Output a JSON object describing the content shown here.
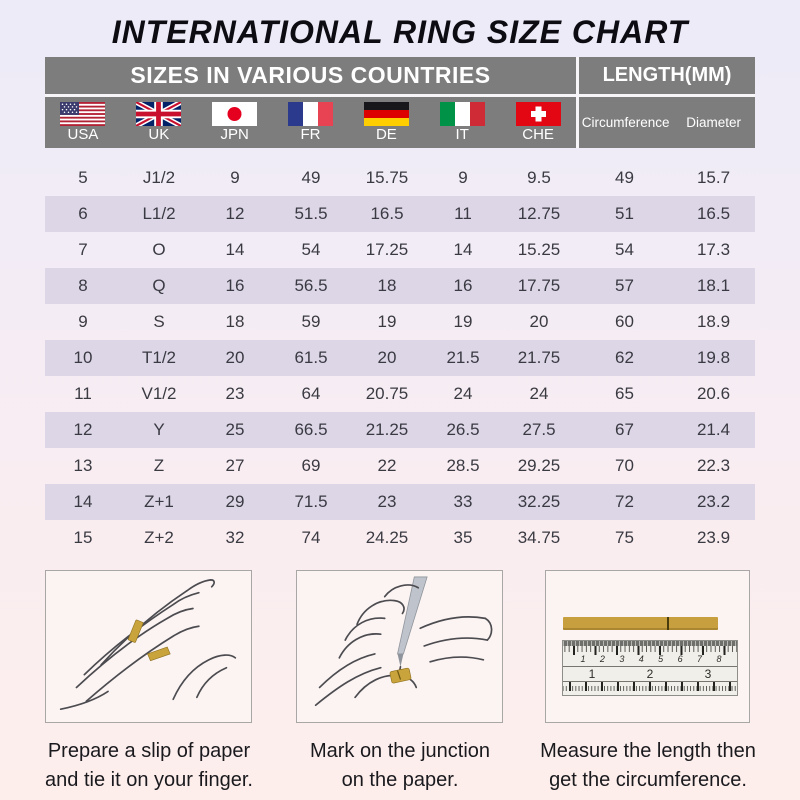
{
  "chart_data": {
    "type": "table",
    "title": "INTERNATIONAL RING SIZE CHART",
    "section_headers": {
      "left": "SIZES IN VARIOUS COUNTRIES",
      "right": "LENGTH(MM)"
    },
    "country_columns": [
      {
        "label": "USA",
        "flag": "united-states"
      },
      {
        "label": "UK",
        "flag": "united-kingdom"
      },
      {
        "label": "JPN",
        "flag": "japan"
      },
      {
        "label": "FR",
        "flag": "france"
      },
      {
        "label": "DE",
        "flag": "germany"
      },
      {
        "label": "IT",
        "flag": "italy"
      },
      {
        "label": "CHE",
        "flag": "switzerland"
      }
    ],
    "length_columns": [
      {
        "label": "Circumference"
      },
      {
        "label": "Diameter"
      }
    ],
    "rows": [
      [
        "5",
        "J1/2",
        "9",
        "49",
        "15.75",
        "9",
        "9.5",
        "49",
        "15.7"
      ],
      [
        "6",
        "L1/2",
        "12",
        "51.5",
        "16.5",
        "11",
        "12.75",
        "51",
        "16.5"
      ],
      [
        "7",
        "O",
        "14",
        "54",
        "17.25",
        "14",
        "15.25",
        "54",
        "17.3"
      ],
      [
        "8",
        "Q",
        "16",
        "56.5",
        "18",
        "16",
        "17.75",
        "57",
        "18.1"
      ],
      [
        "9",
        "S",
        "18",
        "59",
        "19",
        "19",
        "20",
        "60",
        "18.9"
      ],
      [
        "10",
        "T1/2",
        "20",
        "61.5",
        "20",
        "21.5",
        "21.75",
        "62",
        "19.8"
      ],
      [
        "11",
        "V1/2",
        "23",
        "64",
        "20.75",
        "24",
        "24",
        "65",
        "20.6"
      ],
      [
        "12",
        "Y",
        "25",
        "66.5",
        "21.25",
        "26.5",
        "27.5",
        "67",
        "21.4"
      ],
      [
        "13",
        "Z",
        "27",
        "69",
        "22",
        "28.5",
        "29.25",
        "70",
        "22.3"
      ],
      [
        "14",
        "Z+1",
        "29",
        "71.5",
        "23",
        "33",
        "32.25",
        "72",
        "23.2"
      ],
      [
        "15",
        "Z+2",
        "32",
        "74",
        "24.25",
        "35",
        "34.75",
        "75",
        "23.9"
      ]
    ]
  },
  "instructions": {
    "steps": [
      {
        "illustration": "hand-with-paper-strip",
        "caption_line1": "Prepare a slip of paper",
        "caption_line2": "and tie it on your finger."
      },
      {
        "illustration": "pen-marking-paper",
        "caption_line1": "Mark on the junction",
        "caption_line2": "on the paper."
      },
      {
        "illustration": "ruler-measuring",
        "caption_line1": "Measure the length then",
        "caption_line2": "get the circumference."
      }
    ],
    "ruler": {
      "top_numbers": [
        "1",
        "2",
        "3",
        "4",
        "5",
        "6",
        "7",
        "8"
      ],
      "bottom_numbers": [
        "1",
        "2",
        "3"
      ]
    }
  },
  "colors": {
    "header_gray": "#7d7d7d",
    "row_shade": "#dcd6e6",
    "paper_gold": "#c9a33b",
    "background_top": "#edebf8",
    "background_bottom": "#fdeeec"
  }
}
